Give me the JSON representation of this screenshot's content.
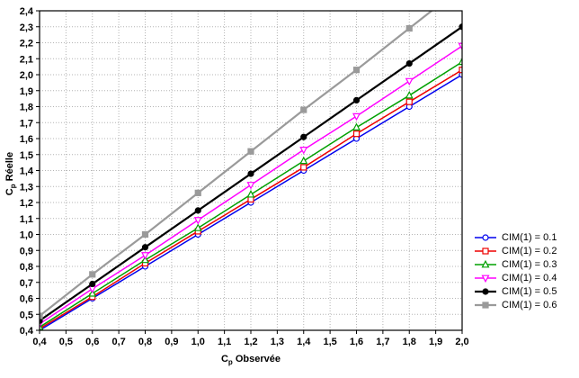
{
  "chart_data": {
    "type": "line",
    "title": "",
    "xlabel": {
      "base": "C",
      "sub": "p",
      "rest": " Observée"
    },
    "ylabel": {
      "base": "C",
      "sub": "p",
      "rest": " Réelle"
    },
    "xlim": [
      0.4,
      2.0
    ],
    "ylim": [
      0.4,
      2.4
    ],
    "xtick_step": 0.1,
    "ytick_step": 0.1,
    "decimal_separator": ",",
    "grid": "dotted",
    "legend_position": "right-bottom",
    "x": [
      0.4,
      0.6,
      0.8,
      1.0,
      1.2,
      1.4,
      1.6,
      1.8,
      2.0
    ],
    "series": [
      {
        "name": "CIM(1) = 0.1",
        "color": "#0000ee",
        "marker": "circle-open",
        "lw": 1.5,
        "values": [
          0.4,
          0.6,
          0.8,
          1.0,
          1.2,
          1.4,
          1.6,
          1.8,
          2.0
        ]
      },
      {
        "name": "CIM(1) = 0.2",
        "color": "#ee0000",
        "marker": "square-open",
        "lw": 1.5,
        "values": [
          0.41,
          0.61,
          0.82,
          1.02,
          1.22,
          1.42,
          1.63,
          1.83,
          2.03
        ]
      },
      {
        "name": "CIM(1) = 0.3",
        "color": "#00a000",
        "marker": "triangle-up-open",
        "lw": 1.5,
        "values": [
          0.42,
          0.63,
          0.84,
          1.04,
          1.25,
          1.46,
          1.67,
          1.87,
          2.08
        ]
      },
      {
        "name": "CIM(1) = 0.4",
        "color": "#ff00ff",
        "marker": "triangle-down-open",
        "lw": 1.5,
        "values": [
          0.44,
          0.66,
          0.87,
          1.09,
          1.31,
          1.53,
          1.74,
          1.96,
          2.18
        ]
      },
      {
        "name": "CIM(1) = 0.5",
        "color": "#000000",
        "marker": "circle-filled",
        "lw": 2.2,
        "values": [
          0.46,
          0.69,
          0.92,
          1.15,
          1.38,
          1.61,
          1.84,
          2.07,
          2.3
        ]
      },
      {
        "name": "CIM(1) = 0.6",
        "color": "#9a9a9a",
        "marker": "square-filled",
        "lw": 2.2,
        "values": [
          0.49,
          0.75,
          1.0,
          1.26,
          1.52,
          1.78,
          2.03,
          2.29,
          2.55
        ]
      }
    ]
  }
}
